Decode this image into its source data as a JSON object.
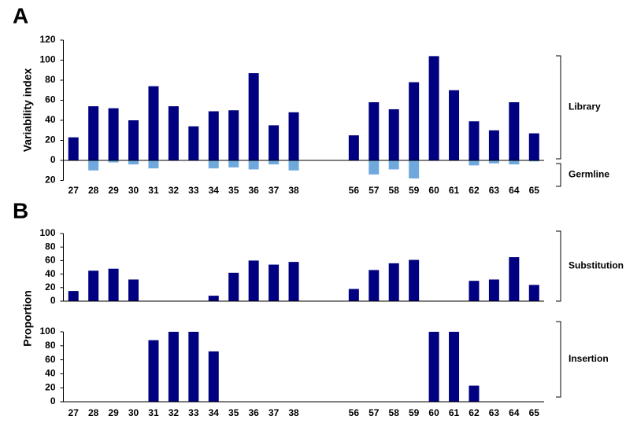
{
  "chart_data": [
    {
      "type": "bar",
      "panel_label": "A",
      "ylabel": "Variability index",
      "categories": [
        "27",
        "28",
        "29",
        "30",
        "31",
        "32",
        "33",
        "34",
        "35",
        "36",
        "37",
        "38",
        null,
        null,
        "56",
        "57",
        "58",
        "59",
        "60",
        "61",
        "62",
        "63",
        "64",
        "65"
      ],
      "series": [
        {
          "name": "Library",
          "color": "#000080",
          "values": [
            23,
            54,
            52,
            40,
            74,
            54,
            34,
            49,
            50,
            87,
            35,
            48,
            null,
            null,
            25,
            58,
            51,
            78,
            104,
            70,
            39,
            30,
            58,
            27
          ]
        },
        {
          "name": "Germline",
          "color": "#6fa8dc",
          "values": [
            0,
            -10,
            -2,
            -4,
            -8,
            0,
            0,
            -8,
            -7,
            -9,
            -4,
            -10,
            null,
            null,
            0,
            -14,
            -9,
            -18,
            0,
            0,
            -5,
            -3,
            -4,
            -1
          ]
        }
      ],
      "ylim": [
        -20,
        120
      ],
      "yticks": [
        {
          "value": -20,
          "label": "20"
        },
        0,
        20,
        40,
        60,
        80,
        100,
        120
      ]
    },
    {
      "type": "bar",
      "panel_label": "B",
      "ylabel": "Proportion",
      "series": [
        {
          "name": "Substitution",
          "color": "#000080",
          "values": [
            15,
            45,
            48,
            32,
            0,
            0,
            0,
            8,
            42,
            60,
            54,
            58,
            null,
            null,
            18,
            46,
            56,
            61,
            0,
            0,
            30,
            32,
            65,
            24
          ]
        }
      ],
      "ylim": [
        0,
        100
      ],
      "yticks": [
        0,
        20,
        40,
        60,
        80,
        100
      ]
    },
    {
      "type": "bar",
      "categories": [
        "27",
        "28",
        "29",
        "30",
        "31",
        "32",
        "33",
        "34",
        "35",
        "36",
        "37",
        "38",
        null,
        null,
        "56",
        "57",
        "58",
        "59",
        "60",
        "61",
        "62",
        "63",
        "64",
        "65"
      ],
      "series": [
        {
          "name": "Insertion",
          "color": "#000080",
          "values": [
            0,
            0,
            0,
            0,
            88,
            100,
            100,
            72,
            0,
            0,
            0,
            0,
            null,
            null,
            0,
            0,
            0,
            0,
            100,
            100,
            23,
            0,
            0,
            0
          ]
        }
      ],
      "ylim": [
        0,
        100
      ],
      "yticks": [
        0,
        20,
        40,
        60,
        80,
        100
      ]
    }
  ]
}
